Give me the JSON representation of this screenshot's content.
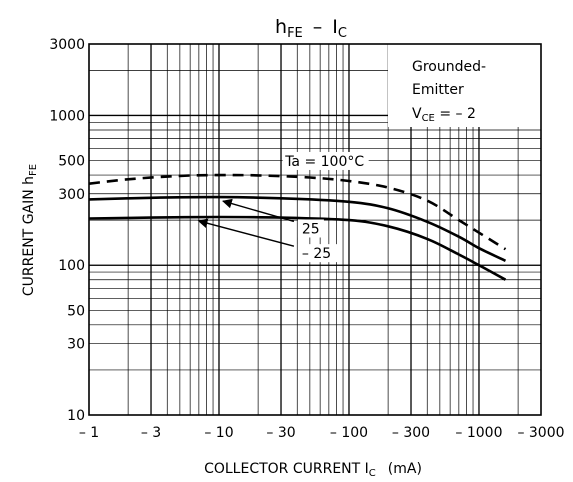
{
  "chart_data": {
    "type": "line",
    "title": {
      "main": "h",
      "main_sub": "FE",
      "sep": "–",
      "right": "I",
      "right_sub": "C"
    },
    "ylabel": {
      "main": "CURRENT GAIN   h",
      "sub": "FE"
    },
    "xlabel": {
      "main": "COLLECTOR CURRENT   I",
      "sub": "C",
      "unit": "(mA)"
    },
    "x_scale": "log",
    "y_scale": "log",
    "x_is_negative": true,
    "xlim": [
      1,
      3000
    ],
    "ylim": [
      10,
      3000
    ],
    "x_ticks": [
      {
        "v": 1,
        "label": "– 1"
      },
      {
        "v": 3,
        "label": "– 3"
      },
      {
        "v": 10,
        "label": "– 10"
      },
      {
        "v": 30,
        "label": "– 30"
      },
      {
        "v": 100,
        "label": "– 100"
      },
      {
        "v": 300,
        "label": "– 300"
      },
      {
        "v": 1000,
        "label": "– 1000"
      },
      {
        "v": 3000,
        "label": "– 3000"
      }
    ],
    "y_ticks": [
      {
        "v": 10,
        "label": "10"
      },
      {
        "v": 30,
        "label": "30"
      },
      {
        "v": 50,
        "label": "50"
      },
      {
        "v": 100,
        "label": "100"
      },
      {
        "v": 300,
        "label": "300"
      },
      {
        "v": 500,
        "label": "500"
      },
      {
        "v": 1000,
        "label": "1000"
      },
      {
        "v": 3000,
        "label": "3000"
      }
    ],
    "grid": true,
    "legend_box": {
      "line1": "Grounded-",
      "line2": "Emitter",
      "line3_main": "V",
      "line3_sub": "CE",
      "line3_rest": " = – 2"
    },
    "series": [
      {
        "name": "Ta = 100°C",
        "style": "dashed",
        "points": [
          [
            1,
            350
          ],
          [
            2,
            375
          ],
          [
            5,
            395
          ],
          [
            10,
            400
          ],
          [
            20,
            398
          ],
          [
            50,
            385
          ],
          [
            100,
            365
          ],
          [
            200,
            330
          ],
          [
            400,
            270
          ],
          [
            700,
            200
          ],
          [
            1000,
            165
          ],
          [
            1600,
            128
          ]
        ]
      },
      {
        "name": "25",
        "style": "solid",
        "points": [
          [
            1,
            275
          ],
          [
            3,
            282
          ],
          [
            10,
            285
          ],
          [
            30,
            280
          ],
          [
            100,
            265
          ],
          [
            200,
            240
          ],
          [
            400,
            195
          ],
          [
            700,
            155
          ],
          [
            1000,
            130
          ],
          [
            1600,
            107
          ]
        ]
      },
      {
        "name": "– 25",
        "style": "solid",
        "points": [
          [
            1,
            205
          ],
          [
            3,
            208
          ],
          [
            10,
            210
          ],
          [
            30,
            208
          ],
          [
            100,
            200
          ],
          [
            200,
            182
          ],
          [
            400,
            150
          ],
          [
            700,
            118
          ],
          [
            1000,
            100
          ],
          [
            1600,
            80
          ]
        ]
      }
    ],
    "annotations": [
      {
        "series": "Ta = 100°C",
        "text": "Ta = 100°C",
        "at": [
          65,
          460
        ]
      },
      {
        "series": "25",
        "text": "25",
        "arrow_to": [
          10,
          285
        ],
        "at": [
          45,
          168
        ]
      },
      {
        "series": "– 25",
        "text": "– 25",
        "arrow_to": [
          6.5,
          210
        ],
        "at": [
          45,
          115
        ]
      }
    ]
  }
}
